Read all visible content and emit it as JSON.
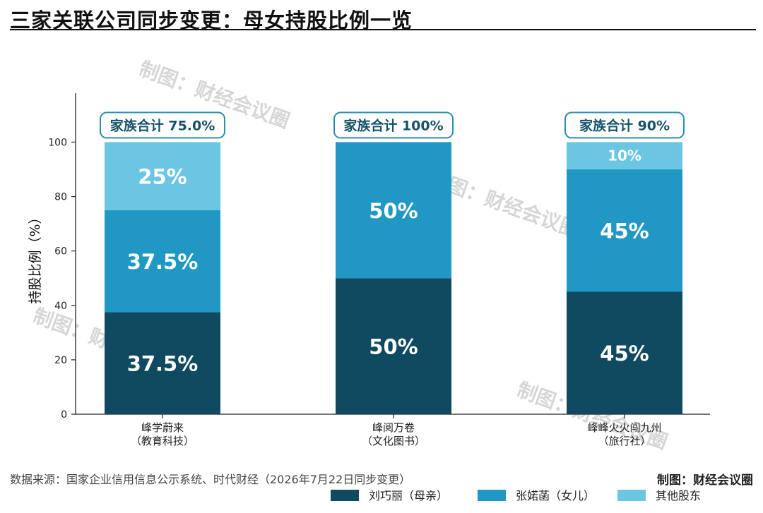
{
  "title": "三家关联公司同步变更：母女持股比例一览",
  "source": "数据来源：国家企业信用信息公示系统、时代财经（2026年7月22日同步变更）",
  "credit": "制图：财经会议圈",
  "watermark": "制图：财经会议圈",
  "colors": {
    "series": [
      "#0f4a60",
      "#2198c4",
      "#6ac6e2"
    ],
    "callout_border": "#2a90b0",
    "callout_text": "#15526a",
    "watermark": "#c9c9c9"
  },
  "chart_data": {
    "type": "bar",
    "stacked": true,
    "categories": [
      [
        "峰学蔚来",
        "（教育科技）"
      ],
      [
        "峰阅万卷",
        "（文化图书）"
      ],
      [
        "峰峰火火闯九州",
        "（旅行社）"
      ]
    ],
    "series": [
      {
        "name": "刘巧丽（母亲）",
        "values": [
          37.5,
          50,
          45
        ],
        "labels": [
          "37.5%",
          "50%",
          "45%"
        ]
      },
      {
        "name": "张婼菡（女儿）",
        "values": [
          37.5,
          50,
          45
        ],
        "labels": [
          "37.5%",
          "50%",
          "45%"
        ]
      },
      {
        "name": "其他股东",
        "values": [
          25,
          0,
          10
        ],
        "labels": [
          "25%",
          "",
          "10%"
        ]
      }
    ],
    "totals": [
      "家族合计 75.0%",
      "家族合计 100%",
      "家族合计 90%"
    ],
    "ylabel": "持股比例（%）",
    "xlabel": "",
    "ylim": [
      0,
      118
    ],
    "yticks": [
      0,
      20,
      40,
      60,
      80,
      100
    ],
    "grid": false,
    "legend_position": "bottom"
  }
}
